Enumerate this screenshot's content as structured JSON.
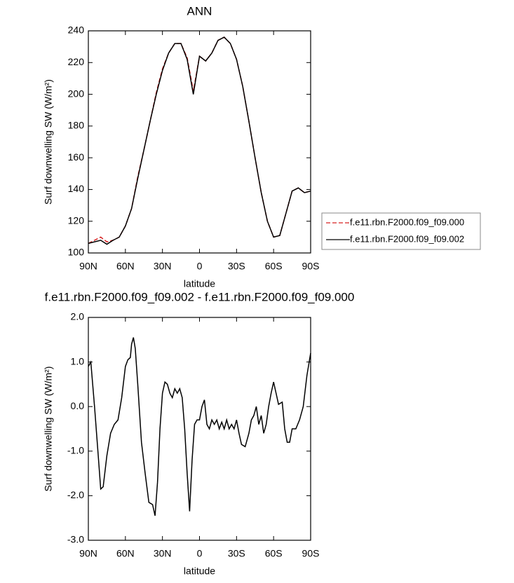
{
  "chart_data": [
    {
      "type": "line",
      "title": "ANN",
      "xlabel": "latitude",
      "ylabel": "Surf downwelling SW (W/m²)",
      "x": [
        90,
        85,
        80,
        75,
        70,
        65,
        60,
        55,
        50,
        45,
        40,
        35,
        30,
        25,
        20,
        15,
        10,
        5,
        0,
        -5,
        -10,
        -15,
        -20,
        -25,
        -30,
        -35,
        -40,
        -45,
        -50,
        -55,
        -60,
        -65,
        -70,
        -75,
        -80,
        -85,
        -90
      ],
      "series": [
        {
          "name": "f.e11.rbn.F2000.f09_f09.000",
          "color": "#d62020",
          "dash": "dashed",
          "values": [
            106,
            108,
            110,
            107,
            108,
            110,
            117,
            128,
            148,
            165,
            183,
            201,
            216,
            226,
            232,
            232,
            223,
            202,
            224,
            221,
            226,
            234,
            236,
            232,
            222,
            205,
            183,
            160,
            138,
            120,
            110,
            111,
            125,
            139,
            141,
            138,
            139
          ]
        },
        {
          "name": "f.e11.rbn.F2000.f09_f09.002",
          "color": "#000000",
          "dash": "solid",
          "values": [
            106,
            107,
            108,
            105.5,
            108,
            110,
            117,
            128,
            147,
            165,
            183,
            200,
            215,
            226,
            232,
            232,
            222,
            200,
            224,
            221,
            226,
            234,
            236,
            232,
            222,
            205,
            183,
            160,
            138,
            120,
            110,
            111,
            125,
            139,
            141,
            138,
            139
          ]
        }
      ],
      "xlim": [
        90,
        -90
      ],
      "xticks": [
        {
          "value": 90,
          "label": "90N"
        },
        {
          "value": 60,
          "label": "60N"
        },
        {
          "value": 30,
          "label": "30N"
        },
        0,
        {
          "value": -30,
          "label": "30S"
        },
        {
          "value": -60,
          "label": "60S"
        },
        {
          "value": -90,
          "label": "90S"
        }
      ],
      "ylim": [
        100,
        240
      ],
      "yticks": [
        100,
        120,
        140,
        160,
        180,
        200,
        220,
        240
      ],
      "legend": "outside-right"
    },
    {
      "type": "line",
      "title": "f.e11.rbn.F2000.f09_f09.002 - f.e11.rbn.F2000.f09_f09.000",
      "xlabel": "latitude",
      "ylabel": "Surf downwelling SW (W/m²)",
      "x": [
        90,
        88,
        85,
        82,
        80,
        78,
        75,
        72,
        69,
        66,
        63,
        60,
        58,
        56,
        55,
        53.5,
        52,
        50,
        47,
        44,
        41,
        38,
        36,
        34,
        32,
        30,
        28,
        26,
        24,
        22,
        20,
        18,
        16,
        14,
        12,
        10,
        8,
        6,
        4,
        2,
        0,
        -2,
        -4,
        -6,
        -8,
        -10,
        -12,
        -14,
        -16,
        -18,
        -20,
        -22,
        -24,
        -26,
        -28,
        -30,
        -32,
        -34,
        -37,
        -40,
        -42,
        -44,
        -46,
        -48,
        -50,
        -52,
        -54,
        -56,
        -58,
        -60,
        -62,
        -64,
        -67,
        -69,
        -71,
        -73,
        -75,
        -78,
        -81,
        -84,
        -87,
        -90
      ],
      "values": [
        0.9,
        1.0,
        0.0,
        -1.1,
        -1.85,
        -1.8,
        -1.1,
        -0.6,
        -0.4,
        -0.3,
        0.2,
        0.9,
        1.05,
        1.1,
        1.4,
        1.55,
        1.3,
        0.5,
        -0.8,
        -1.5,
        -2.15,
        -2.2,
        -2.45,
        -1.7,
        -0.5,
        0.3,
        0.55,
        0.5,
        0.3,
        0.2,
        0.4,
        0.3,
        0.4,
        0.2,
        -0.5,
        -1.5,
        -2.35,
        -1.2,
        -0.4,
        -0.3,
        -0.3,
        0.0,
        0.15,
        -0.4,
        -0.5,
        -0.3,
        -0.4,
        -0.3,
        -0.5,
        -0.35,
        -0.5,
        -0.3,
        -0.5,
        -0.4,
        -0.5,
        -0.3,
        -0.6,
        -0.85,
        -0.9,
        -0.6,
        -0.3,
        -0.2,
        0.0,
        -0.4,
        -0.2,
        -0.6,
        -0.4,
        0.0,
        0.3,
        0.55,
        0.3,
        0.05,
        0.1,
        -0.5,
        -0.8,
        -0.8,
        -0.5,
        -0.5,
        -0.3,
        0.0,
        0.7,
        1.2
      ],
      "color": "#000000",
      "xlim": [
        90,
        -90
      ],
      "xticks": [
        {
          "value": 90,
          "label": "90N"
        },
        {
          "value": 60,
          "label": "60N"
        },
        {
          "value": 30,
          "label": "30N"
        },
        0,
        {
          "value": -30,
          "label": "30S"
        },
        {
          "value": -60,
          "label": "60S"
        },
        {
          "value": -90,
          "label": "90S"
        }
      ],
      "ylim": [
        -3,
        2
      ],
      "yticks": [
        {
          "value": -3,
          "label": "-3.0"
        },
        {
          "value": -2,
          "label": "-2.0"
        },
        {
          "value": -1,
          "label": "-1.0"
        },
        {
          "value": 0,
          "label": "0.0"
        },
        {
          "value": 1,
          "label": "1.0"
        },
        {
          "value": 2,
          "label": "2.0"
        }
      ]
    }
  ]
}
